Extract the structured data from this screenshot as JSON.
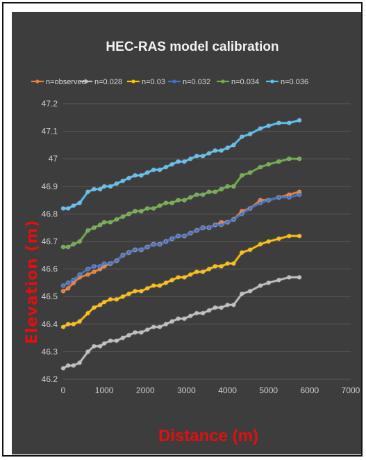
{
  "chart_data": {
    "type": "line",
    "title": "HEC-RAS model calibration",
    "xlabel": "Distance (m)",
    "ylabel": "Elevation (m)",
    "xlim": [
      0,
      7000
    ],
    "ylim": [
      46.2,
      47.2
    ],
    "xticks": [
      "0",
      "1000",
      "2000",
      "3000",
      "4000",
      "5000",
      "6000",
      "7000"
    ],
    "yticks": [
      "46.2",
      "46.3",
      "46.4",
      "46.5",
      "46.6",
      "46.7",
      "46.8",
      "46.9",
      "47",
      "47.1",
      "47.2"
    ],
    "grid": true,
    "legend_position": "top",
    "x": [
      0,
      120,
      250,
      400,
      600,
      750,
      900,
      1000,
      1150,
      1300,
      1450,
      1600,
      1750,
      1900,
      2050,
      2200,
      2350,
      2500,
      2650,
      2800,
      2950,
      3100,
      3250,
      3400,
      3550,
      3700,
      3850,
      4000,
      4150,
      4350,
      4550,
      4800,
      5000,
      5250,
      5500,
      5750
    ],
    "series": [
      {
        "name": "n=observed",
        "color": "#ed7d31",
        "values": [
          46.52,
          46.53,
          46.55,
          46.57,
          46.58,
          46.59,
          46.6,
          46.61,
          46.62,
          46.63,
          46.65,
          46.66,
          46.67,
          46.67,
          46.68,
          46.69,
          46.69,
          46.7,
          46.71,
          46.72,
          46.72,
          46.73,
          46.74,
          46.75,
          46.75,
          46.76,
          46.77,
          46.77,
          46.78,
          46.81,
          46.82,
          46.85,
          46.85,
          46.86,
          46.87,
          46.88
        ]
      },
      {
        "name": "n=0.028",
        "color": "#bfbfbf",
        "values": [
          46.24,
          46.25,
          46.25,
          46.26,
          46.3,
          46.32,
          46.32,
          46.33,
          46.34,
          46.34,
          46.35,
          46.36,
          46.37,
          46.37,
          46.38,
          46.39,
          46.39,
          46.4,
          46.41,
          46.42,
          46.42,
          46.43,
          46.44,
          46.44,
          46.45,
          46.46,
          46.46,
          46.47,
          46.47,
          46.51,
          46.52,
          46.54,
          46.55,
          46.56,
          46.57,
          46.57
        ]
      },
      {
        "name": "n=0.03",
        "color": "#ffc000",
        "values": [
          46.39,
          46.4,
          46.4,
          46.41,
          46.44,
          46.46,
          46.47,
          46.48,
          46.49,
          46.49,
          46.5,
          46.51,
          46.52,
          46.52,
          46.53,
          46.54,
          46.54,
          46.55,
          46.56,
          46.57,
          46.57,
          46.58,
          46.59,
          46.59,
          46.6,
          46.61,
          46.61,
          46.62,
          46.62,
          46.66,
          46.67,
          46.69,
          46.7,
          46.71,
          46.72,
          46.72
        ]
      },
      {
        "name": "n=0.032",
        "color": "#4472c4",
        "values": [
          46.54,
          46.55,
          46.56,
          46.58,
          46.6,
          46.61,
          46.61,
          46.62,
          46.62,
          46.63,
          46.65,
          46.66,
          46.67,
          46.67,
          46.68,
          46.69,
          46.69,
          46.7,
          46.71,
          46.72,
          46.72,
          46.73,
          46.74,
          46.75,
          46.75,
          46.76,
          46.76,
          46.77,
          46.78,
          46.8,
          46.82,
          46.84,
          46.85,
          46.86,
          46.86,
          46.87
        ]
      },
      {
        "name": "n=0.034",
        "color": "#70ad47",
        "values": [
          46.68,
          46.68,
          46.69,
          46.7,
          46.74,
          46.75,
          46.76,
          46.77,
          46.77,
          46.78,
          46.79,
          46.8,
          46.81,
          46.81,
          46.82,
          46.82,
          46.83,
          46.84,
          46.84,
          46.85,
          46.85,
          46.86,
          46.87,
          46.87,
          46.88,
          46.88,
          46.89,
          46.9,
          46.9,
          46.94,
          46.95,
          46.97,
          46.98,
          46.99,
          47.0,
          47.0
        ]
      },
      {
        "name": "n=0.036",
        "color": "#5bc0f0",
        "values": [
          46.82,
          46.82,
          46.83,
          46.84,
          46.88,
          46.89,
          46.89,
          46.9,
          46.9,
          46.91,
          46.92,
          46.93,
          46.94,
          46.94,
          46.95,
          46.96,
          46.96,
          46.97,
          46.98,
          46.99,
          46.99,
          47.0,
          47.01,
          47.01,
          47.02,
          47.03,
          47.03,
          47.04,
          47.05,
          47.08,
          47.09,
          47.11,
          47.12,
          47.13,
          47.13,
          47.14
        ]
      }
    ]
  }
}
